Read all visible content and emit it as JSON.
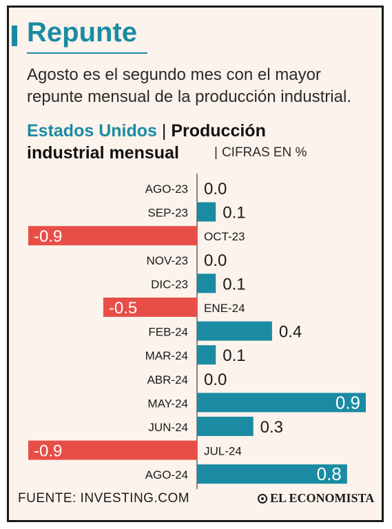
{
  "header": {
    "title": "Repunte",
    "subtitle": "Agosto es el segundo mes con el mayor repunte mensual de la producción industrial."
  },
  "chart_heading": {
    "country": "Estados Unidos",
    "separator": "|",
    "metric_line1": "Producción",
    "metric_line2": "industrial mensual",
    "units_separator": "|",
    "units": "CIFRAS EN %"
  },
  "footer": {
    "source": "FUENTE: INVESTING.COM",
    "logo": "EL ECONOMISTA"
  },
  "colors": {
    "positive": "#1a8ba3",
    "negative": "#e84e48",
    "title": "#1a8ba3",
    "background": "#fcf3ec"
  },
  "chart_data": {
    "type": "bar",
    "orientation": "horizontal",
    "categories": [
      "AGO-23",
      "SEP-23",
      "OCT-23",
      "NOV-23",
      "DIC-23",
      "ENE-24",
      "FEB-24",
      "MAR-24",
      "ABR-24",
      "MAY-24",
      "JUN-24",
      "JUL-24",
      "AGO-24"
    ],
    "values": [
      0.0,
      0.1,
      -0.9,
      0.0,
      0.1,
      -0.5,
      0.4,
      0.1,
      0.0,
      0.9,
      0.3,
      -0.9,
      0.8
    ],
    "value_labels": [
      "0.0",
      "0.1",
      "-0.9",
      "0.0",
      "0.1",
      "-0.5",
      "0.4",
      "0.1",
      "0.0",
      "0.9",
      "0.3",
      "-0.9",
      "0.8"
    ],
    "xlim": [
      -0.9,
      0.9
    ],
    "grid": false,
    "legend": "none"
  }
}
